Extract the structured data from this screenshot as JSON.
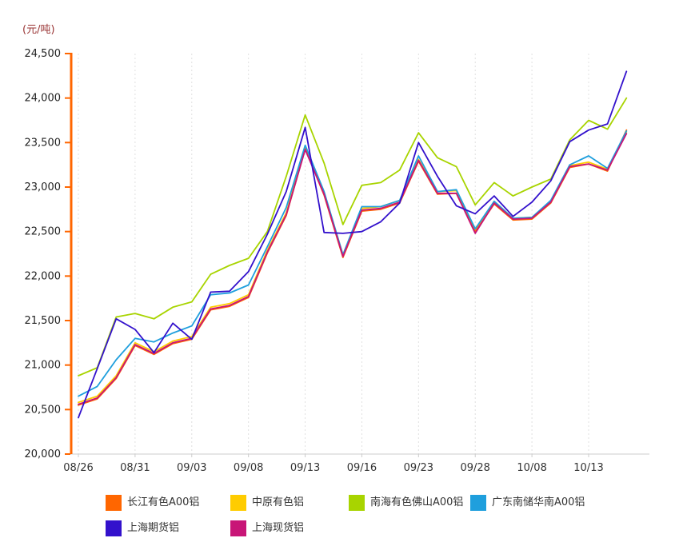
{
  "page": {
    "background": "#FFFFFF"
  },
  "chart_data": {
    "type": "line",
    "title": "",
    "unit_label": "(元/吨)",
    "ylabel": "",
    "xlabel": "",
    "ylim": [
      20000,
      24500
    ],
    "y_tick_step": 500,
    "y_tick_labels": [
      "24,500",
      "24,000",
      "23,500",
      "23,000",
      "22,500",
      "22,000",
      "21,500",
      "21,000",
      "20,500",
      "20,000"
    ],
    "x_tick_labels": [
      "08/26",
      "08/31",
      "09/03",
      "09/08",
      "09/13",
      "09/16",
      "09/23",
      "09/28",
      "10/08",
      "10/13"
    ],
    "x_tick_point_indices": [
      0,
      3,
      6,
      9,
      12,
      15,
      18,
      21,
      24,
      27
    ],
    "points_count": 30,
    "grid": "vertical-dashed",
    "legend_position": "bottom",
    "axis_color": "#FF6600",
    "baseline_color": "#CCCCCC",
    "gridline_color": "#E0E0E0",
    "tick_label_color": "#333333",
    "unit_label_color": "#993333",
    "series": [
      {
        "name": "长江有色A00铝",
        "color": "#FF6600",
        "values": [
          20550,
          20620,
          20850,
          21220,
          21120,
          21240,
          21290,
          21620,
          21660,
          21760,
          22260,
          22680,
          23430,
          22910,
          22210,
          22730,
          22750,
          22820,
          23290,
          22920,
          22930,
          22500,
          22810,
          22630,
          22640,
          22820,
          23220,
          23260,
          23180,
          23640
        ]
      },
      {
        "name": "中原有色铝",
        "color": "#FFCC00",
        "values": [
          20580,
          20650,
          20880,
          21250,
          21150,
          21270,
          21320,
          21650,
          21690,
          21790,
          22290,
          22710,
          23440,
          22940,
          22240,
          22760,
          22780,
          22850,
          23310,
          22950,
          22960,
          22510,
          22840,
          22650,
          22660,
          22840,
          23240,
          23280,
          23200,
          23620
        ]
      },
      {
        "name": "南海有色佛山A00铝",
        "color": "#A8D400",
        "values": [
          20880,
          20970,
          21540,
          21580,
          21520,
          21650,
          21710,
          22020,
          22120,
          22200,
          22500,
          23120,
          23810,
          23270,
          22580,
          23020,
          23050,
          23190,
          23610,
          23330,
          23230,
          22800,
          23050,
          22900,
          23000,
          23090,
          23530,
          23750,
          23650,
          24000
        ]
      },
      {
        "name": "广东南储华南A00铝",
        "color": "#1F9FDD",
        "values": [
          20650,
          20760,
          21060,
          21300,
          21260,
          21360,
          21440,
          21790,
          21810,
          21900,
          22330,
          22770,
          23470,
          22950,
          22240,
          22780,
          22780,
          22850,
          23350,
          22950,
          22970,
          22530,
          22840,
          22650,
          22660,
          22850,
          23250,
          23350,
          23210,
          23630
        ]
      },
      {
        "name": "上海期货铝",
        "color": "#3311CC",
        "values": [
          20410,
          20960,
          21520,
          21400,
          21140,
          21470,
          21290,
          21820,
          21830,
          22050,
          22470,
          22950,
          23670,
          22490,
          22480,
          22500,
          22610,
          22820,
          23500,
          23120,
          22790,
          22700,
          22900,
          22670,
          22830,
          23070,
          23510,
          23640,
          23710,
          24300
        ]
      },
      {
        "name": "上海现货铝",
        "color": "#C81577",
        "values": [
          20560,
          20630,
          20860,
          21230,
          21130,
          21250,
          21300,
          21630,
          21670,
          21770,
          22270,
          22690,
          23420,
          22920,
          22220,
          22740,
          22760,
          22830,
          23300,
          22930,
          22930,
          22480,
          22820,
          22640,
          22650,
          22830,
          23230,
          23260,
          23190,
          23600
        ]
      }
    ]
  }
}
